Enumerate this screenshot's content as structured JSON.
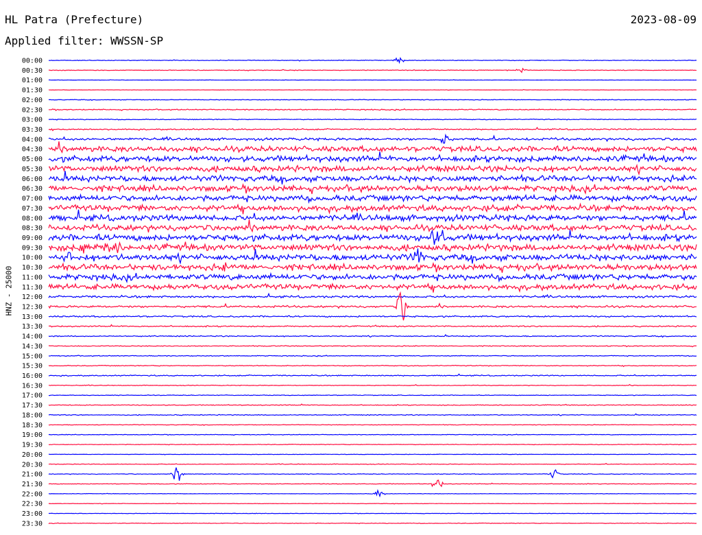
{
  "header": {
    "station": "HL Patra (Prefecture)",
    "date": "2023-08-09",
    "filter": "Applied filter: WWSSN-SP"
  },
  "chart_data": {
    "type": "line",
    "ylabel": "HNZ - 25000",
    "colors": {
      "even": "#0000ff",
      "odd": "#ff0a3c"
    },
    "grid": false,
    "rows": [
      {
        "label": "00:00",
        "amp": 0.3
      },
      {
        "label": "00:30",
        "amp": 0.3
      },
      {
        "label": "01:00",
        "amp": 0.15
      },
      {
        "label": "01:30",
        "amp": 0.15
      },
      {
        "label": "02:00",
        "amp": 0.3
      },
      {
        "label": "02:30",
        "amp": 0.5
      },
      {
        "label": "03:00",
        "amp": 0.4
      },
      {
        "label": "03:30",
        "amp": 0.6
      },
      {
        "label": "04:00",
        "amp": 1.2
      },
      {
        "label": "04:30",
        "amp": 2.6
      },
      {
        "label": "05:00",
        "amp": 2.8
      },
      {
        "label": "05:30",
        "amp": 2.8
      },
      {
        "label": "06:00",
        "amp": 2.8
      },
      {
        "label": "06:30",
        "amp": 2.8
      },
      {
        "label": "07:00",
        "amp": 2.8
      },
      {
        "label": "07:30",
        "amp": 2.8
      },
      {
        "label": "08:00",
        "amp": 2.8
      },
      {
        "label": "08:30",
        "amp": 2.8
      },
      {
        "label": "09:00",
        "amp": 3.0
      },
      {
        "label": "09:30",
        "amp": 3.0
      },
      {
        "label": "10:00",
        "amp": 3.0
      },
      {
        "label": "10:30",
        "amp": 2.8
      },
      {
        "label": "11:00",
        "amp": 2.8
      },
      {
        "label": "11:30",
        "amp": 2.6
      },
      {
        "label": "12:00",
        "amp": 1.0
      },
      {
        "label": "12:30",
        "amp": 1.0
      },
      {
        "label": "13:00",
        "amp": 0.7
      },
      {
        "label": "13:30",
        "amp": 0.6
      },
      {
        "label": "14:00",
        "amp": 0.5
      },
      {
        "label": "14:30",
        "amp": 0.4
      },
      {
        "label": "15:00",
        "amp": 0.4
      },
      {
        "label": "15:30",
        "amp": 0.4
      },
      {
        "label": "16:00",
        "amp": 0.5
      },
      {
        "label": "16:30",
        "amp": 0.3
      },
      {
        "label": "17:00",
        "amp": 0.3
      },
      {
        "label": "17:30",
        "amp": 0.4
      },
      {
        "label": "18:00",
        "amp": 0.4
      },
      {
        "label": "18:30",
        "amp": 0.3
      },
      {
        "label": "19:00",
        "amp": 0.3
      },
      {
        "label": "19:30",
        "amp": 0.3
      },
      {
        "label": "20:00",
        "amp": 0.2
      },
      {
        "label": "20:30",
        "amp": 0.3
      },
      {
        "label": "21:00",
        "amp": 0.3
      },
      {
        "label": "21:30",
        "amp": 0.3
      },
      {
        "label": "22:00",
        "amp": 0.2
      },
      {
        "label": "22:30",
        "amp": 0.2
      },
      {
        "label": "23:00",
        "amp": 0.2
      },
      {
        "label": "23:30",
        "amp": 0.3
      }
    ],
    "events": [
      {
        "row": "00:00",
        "t": 0.54,
        "amp": 6
      },
      {
        "row": "00:30",
        "t": 0.73,
        "amp": 5
      },
      {
        "row": "04:00",
        "t": 0.61,
        "amp": 10
      },
      {
        "row": "09:30",
        "t": 0.055,
        "amp": 12
      },
      {
        "row": "09:30",
        "t": 0.09,
        "amp": 10
      },
      {
        "row": "09:30",
        "t": 0.105,
        "amp": 10
      },
      {
        "row": "09:00",
        "t": 0.59,
        "amp": 14
      },
      {
        "row": "09:00",
        "t": 0.605,
        "amp": 14
      },
      {
        "row": "10:00",
        "t": 0.03,
        "amp": 10
      },
      {
        "row": "10:00",
        "t": 0.57,
        "amp": 16
      },
      {
        "row": "10:30",
        "t": 0.27,
        "amp": 6
      },
      {
        "row": "10:30",
        "t": 0.73,
        "amp": 6
      },
      {
        "row": "12:30",
        "t": 0.545,
        "amp": 22
      },
      {
        "row": "21:00",
        "t": 0.2,
        "amp": 10
      },
      {
        "row": "21:00",
        "t": 0.78,
        "amp": 6
      },
      {
        "row": "21:30",
        "t": 0.6,
        "amp": 8
      },
      {
        "row": "22:00",
        "t": 0.51,
        "amp": 6
      }
    ]
  }
}
